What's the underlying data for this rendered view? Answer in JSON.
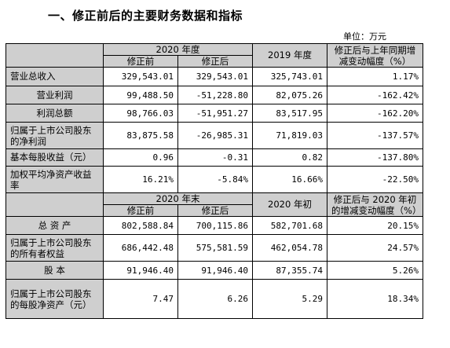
{
  "title": "一、修正前后的主要财务数据和指标",
  "unit": "单位：万元",
  "section1": {
    "period_header": "2020 年度",
    "before_header": "修正前",
    "after_header": "修正后",
    "prior_header": "2019 年度",
    "change_header": "修正后与上年同期增减变动幅度（%）",
    "rows": [
      {
        "label": "营业总收入",
        "before": "329,543.01",
        "after": "329,543.01",
        "prior": "325,743.01",
        "change": "1.17%"
      },
      {
        "label": "营业利润",
        "before": "99,488.50",
        "after": "-51,228.80",
        "prior": "82,075.26",
        "change": "-162.42%"
      },
      {
        "label": "利润总额",
        "before": "98,766.03",
        "after": "-51,951.27",
        "prior": "83,517.95",
        "change": "-162.20%"
      },
      {
        "label": "归属于上市公司股东的净利润",
        "before": "83,875.58",
        "after": "-26,985.31",
        "prior": "71,819.03",
        "change": "-137.57%"
      },
      {
        "label": "基本每股收益（元）",
        "before": "0.96",
        "after": "-0.31",
        "prior": "0.82",
        "change": "-137.80%"
      },
      {
        "label": "加权平均净资产收益率",
        "before": "16.21%",
        "after": "-5.84%",
        "prior": "16.66%",
        "change": "-22.50%"
      }
    ]
  },
  "section2": {
    "period_header": "2020 年末",
    "before_header": "修正前",
    "after_header": "修正后",
    "prior_header": "2020 年初",
    "change_header": "修正后与 2020 年初的增减变动幅度（%）",
    "rows": [
      {
        "label": "总 资 产",
        "before": "802,588.84",
        "after": "700,115.86",
        "prior": "582,701.68",
        "change": "20.15%"
      },
      {
        "label": "归属于上市公司股东的所有者权益",
        "before": "686,442.48",
        "after": "575,581.59",
        "prior": "462,054.78",
        "change": "24.57%"
      },
      {
        "label": "股 本",
        "before": "91,946.40",
        "after": "91,946.40",
        "prior": "87,355.74",
        "change": "5.26%"
      },
      {
        "label": "归属于上市公司股东的每股净资产（元）",
        "before": "7.47",
        "after": "6.26",
        "prior": "5.29",
        "change": "18.34%"
      }
    ]
  }
}
